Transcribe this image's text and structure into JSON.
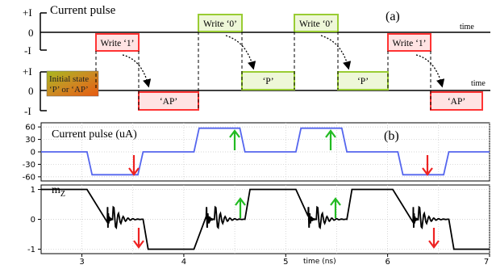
{
  "panel_a": {
    "title": "Current pulse",
    "label": "(a)",
    "time_label": "time",
    "ticks": {
      "plus": "+I",
      "zero": "0",
      "minus": "-I"
    },
    "write_1": "Write ‘1’",
    "write_0": "Write ‘0’",
    "state_p": "‘P’",
    "state_ap": "‘AP’",
    "initial_state_line1": "Initial state",
    "initial_state_line2": "‘P’ or ‘AP’",
    "colors": {
      "write1": "#ff3333",
      "write1_fill": "#ffe3e3",
      "write0": "#99cc33",
      "write0_fill": "#eef7d8",
      "initial_fill": "#cc8a22"
    }
  },
  "panel_b": {
    "label": "(b)",
    "current_title": "Current pulse (uA)",
    "current_ticks": [
      "60",
      "30",
      "0",
      "-30",
      "-60"
    ],
    "mz_title": "m",
    "mz_sub": "Z",
    "mz_ticks": [
      "1",
      "0",
      "-1"
    ],
    "xlabel": "time (ns)",
    "x_ticks": [
      "3",
      "4",
      "5",
      "6",
      "7"
    ],
    "colors": {
      "current": "#5566ee",
      "mz": "#000000",
      "up_arrow": "#22bb22",
      "down_arrow": "#ee2222"
    }
  },
  "chart_data": [
    {
      "type": "line",
      "title": "Current pulse (uA)",
      "xlabel": "time (ns)",
      "x_ticks": [
        3,
        4,
        5,
        6,
        7
      ],
      "y_ticks": [
        60,
        30,
        0,
        -30,
        -60
      ],
      "xlim": [
        2.6,
        7.0
      ],
      "ylim": [
        -70,
        70
      ],
      "series": [
        {
          "x": [
            2.6,
            3.05,
            3.1,
            3.55,
            3.6,
            4.1,
            4.15,
            4.55,
            4.6,
            5.1,
            5.15,
            5.55,
            5.6,
            6.1,
            6.15,
            6.55,
            6.6,
            7.0
          ],
          "y": [
            0,
            0,
            -55,
            -55,
            0,
            0,
            57,
            57,
            0,
            0,
            57,
            57,
            0,
            0,
            -55,
            -55,
            0,
            0
          ]
        }
      ]
    },
    {
      "type": "line",
      "title": "mZ",
      "xlabel": "time (ns)",
      "x_ticks": [
        3,
        4,
        5,
        6,
        7
      ],
      "y_ticks": [
        1,
        0,
        -1
      ],
      "xlim": [
        2.6,
        7.0
      ],
      "ylim": [
        -1.15,
        1.15
      ],
      "series": [
        {
          "x": [
            2.6,
            3.05,
            3.25,
            3.3,
            3.6,
            3.65,
            3.95,
            4.1,
            4.22,
            4.3,
            4.6,
            4.65,
            4.95,
            5.1,
            5.22,
            5.3,
            5.6,
            5.65,
            5.95,
            6.05,
            6.25,
            6.3,
            6.6,
            6.65,
            7.0
          ],
          "y": [
            1,
            1,
            -0.1,
            0,
            0,
            -1,
            -1,
            -1,
            0.1,
            0,
            0,
            1,
            1,
            1,
            0.1,
            0,
            0,
            1,
            1,
            1,
            -0.1,
            0,
            0,
            -1,
            -1
          ]
        }
      ]
    }
  ]
}
